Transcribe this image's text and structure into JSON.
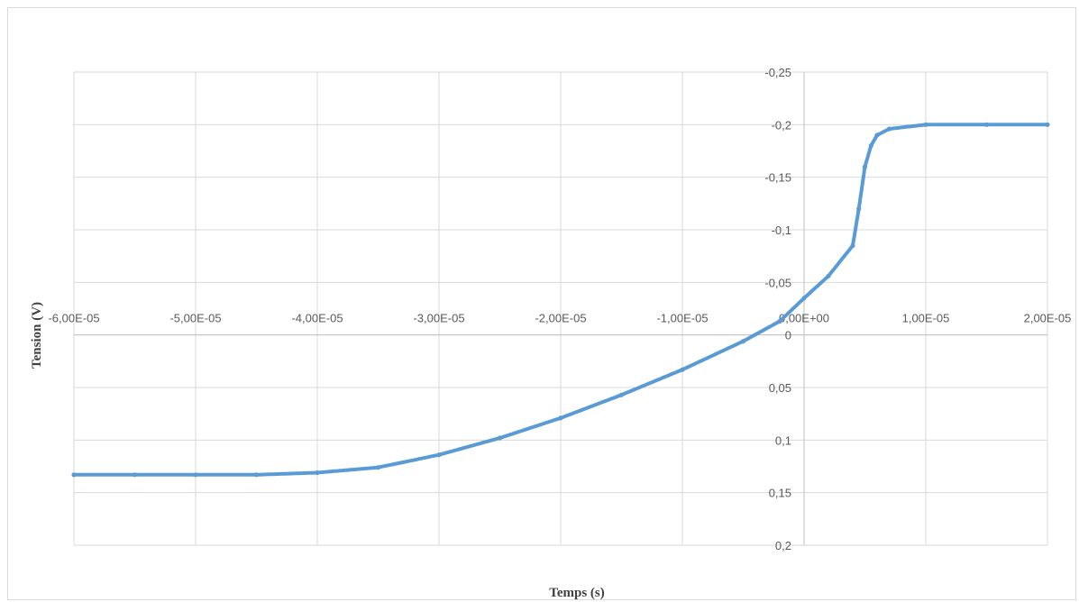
{
  "chart_data": {
    "type": "scatter",
    "title": "",
    "xlabel": "Temps (s)",
    "ylabel": "Tension (V)",
    "xlim": [
      -6e-05,
      2e-05
    ],
    "ylim": [
      -0.25,
      0.2
    ],
    "y_axis_reversed": true,
    "y_axis_crosses_x_at": 0,
    "x_axis_crosses_y_at": 0,
    "grid": true,
    "legend": "none",
    "colors": {
      "series": "#5B9BD5",
      "grid": "#d9d9d9",
      "axis": "#bfbfbf",
      "text": "#595959"
    },
    "x_ticks": [
      {
        "value": -6e-05,
        "label": "-6,00E-05"
      },
      {
        "value": -5e-05,
        "label": "-5,00E-05"
      },
      {
        "value": -4e-05,
        "label": "-4,00E-05"
      },
      {
        "value": -3e-05,
        "label": "-3,00E-05"
      },
      {
        "value": -2e-05,
        "label": "-2,00E-05"
      },
      {
        "value": -1e-05,
        "label": "-1,00E-05"
      },
      {
        "value": 0,
        "label": "0,00E+00"
      },
      {
        "value": 1e-05,
        "label": "1,00E-05"
      },
      {
        "value": 2e-05,
        "label": "2,00E-05"
      }
    ],
    "y_ticks": [
      {
        "value": -0.25,
        "label": "-0,25"
      },
      {
        "value": -0.2,
        "label": "-0,2"
      },
      {
        "value": -0.15,
        "label": "-0,15"
      },
      {
        "value": -0.1,
        "label": "-0,1"
      },
      {
        "value": -0.05,
        "label": "-0,05"
      },
      {
        "value": 0,
        "label": "0"
      },
      {
        "value": 0.05,
        "label": "0,05"
      },
      {
        "value": 0.1,
        "label": "0,1"
      },
      {
        "value": 0.15,
        "label": "0,15"
      },
      {
        "value": 0.2,
        "label": "0,2"
      }
    ],
    "series": [
      {
        "points": [
          [
            -6e-05,
            0.133
          ],
          [
            -5.5e-05,
            0.133
          ],
          [
            -5e-05,
            0.133
          ],
          [
            -4.5e-05,
            0.133
          ],
          [
            -4e-05,
            0.131
          ],
          [
            -3.5e-05,
            0.126
          ],
          [
            -3e-05,
            0.114
          ],
          [
            -2.5e-05,
            0.098
          ],
          [
            -2e-05,
            0.079
          ],
          [
            -1.5e-05,
            0.057
          ],
          [
            -1e-05,
            0.033
          ],
          [
            -5e-06,
            0.006
          ],
          [
            -2e-06,
            -0.013
          ],
          [
            0,
            -0.035
          ],
          [
            2e-06,
            -0.056
          ],
          [
            4e-06,
            -0.085
          ],
          [
            4.5e-06,
            -0.12
          ],
          [
            5e-06,
            -0.16
          ],
          [
            5.5e-06,
            -0.18
          ],
          [
            6e-06,
            -0.19
          ],
          [
            7e-06,
            -0.196
          ],
          [
            1e-05,
            -0.2
          ],
          [
            1.5e-05,
            -0.2
          ],
          [
            2e-05,
            -0.2
          ]
        ]
      }
    ]
  }
}
